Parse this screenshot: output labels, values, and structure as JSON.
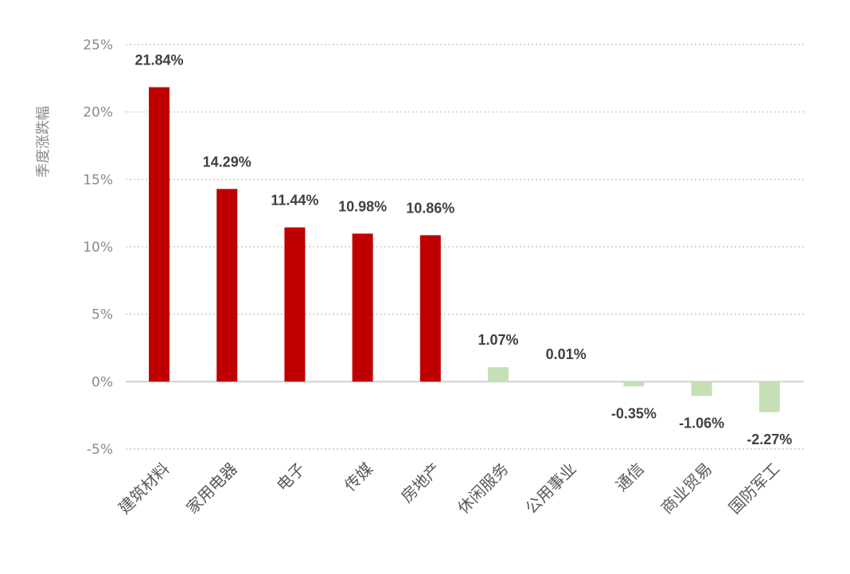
{
  "chart_data": {
    "type": "bar",
    "ylabel": "季度涨跌幅",
    "ylim": [
      -5,
      25
    ],
    "yticks": [
      -5,
      0,
      5,
      10,
      15,
      20,
      25
    ],
    "ytick_labels": [
      "-5%",
      "0%",
      "5%",
      "10%",
      "15%",
      "20%",
      "25%"
    ],
    "grid": true,
    "categories": [
      "建筑材料",
      "家用电器",
      "电子",
      "传媒",
      "房地产",
      "休闲服务",
      "公用事业",
      "通信",
      "商业贸易",
      "国防军工"
    ],
    "values": [
      21.84,
      14.29,
      11.44,
      10.98,
      10.86,
      1.07,
      0.01,
      -0.35,
      -1.06,
      -2.27
    ],
    "data_labels": [
      "21.84%",
      "14.29%",
      "11.44%",
      "10.98%",
      "10.86%",
      "1.07%",
      "0.01%",
      "-0.35%",
      "-1.06%",
      "-2.27%"
    ],
    "colors": {
      "top": "#c00000",
      "other": "#c5e0b4"
    },
    "color_groups": [
      "top",
      "top",
      "top",
      "top",
      "top",
      "other",
      "other",
      "other",
      "other",
      "other"
    ]
  }
}
